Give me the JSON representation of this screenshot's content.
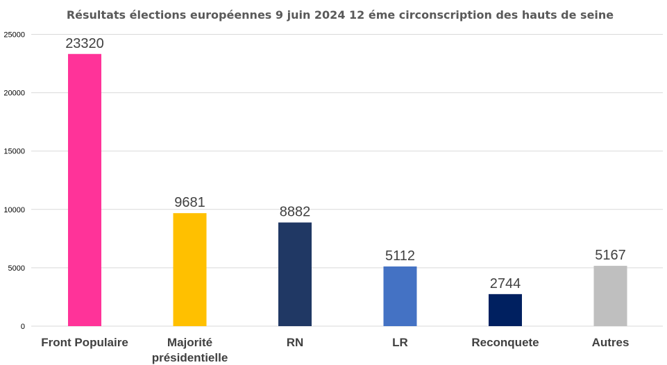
{
  "chart_data": {
    "type": "bar",
    "title": "Résultats élections européennes 9 juin 2024  12 éme circonscription des hauts de seine",
    "xlabel": "",
    "ylabel": "",
    "categories": [
      "Front Populaire",
      "Majorité présidentielle",
      "RN",
      "LR",
      "Reconquete",
      "Autres"
    ],
    "category_lines": [
      [
        "Front Populaire"
      ],
      [
        "Majorité",
        "présidentielle"
      ],
      [
        "RN"
      ],
      [
        "LR"
      ],
      [
        "Reconquete"
      ],
      [
        "Autres"
      ]
    ],
    "values": [
      23320,
      9681,
      8882,
      5112,
      2744,
      5167
    ],
    "data_labels": [
      "23320",
      "9681",
      "8882",
      "5112",
      "2744",
      "5167"
    ],
    "colors": [
      "#ff3399",
      "#ffc000",
      "#203864",
      "#4472c4",
      "#002060",
      "#bfbfbf"
    ],
    "ylim": [
      0,
      25000
    ],
    "yticks": [
      0,
      5000,
      10000,
      15000,
      20000,
      25000
    ],
    "ytick_labels": [
      "0",
      "5000",
      "10000",
      "15000",
      "20000",
      "25000"
    ],
    "grid": true,
    "legend": "none"
  }
}
